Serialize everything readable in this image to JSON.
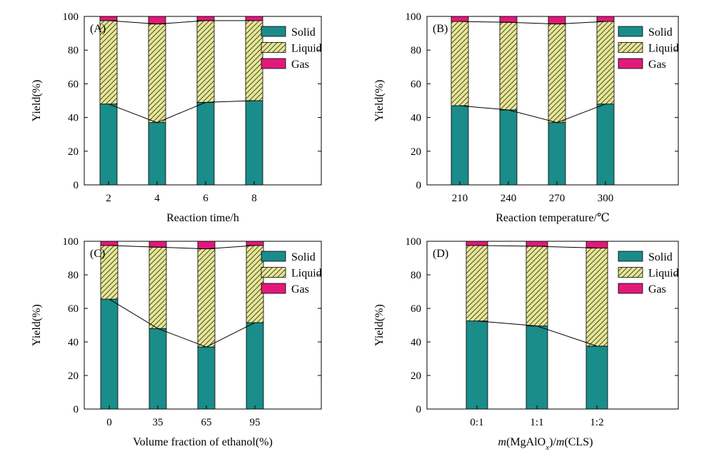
{
  "figure": {
    "colors": {
      "solid": "#1a8c89",
      "liquid": "#e6e69a",
      "liquid_hatch": "#3a3a10",
      "gas": "#e0197a",
      "axis": "#000000",
      "line": "#000000"
    }
  },
  "chart_data": [
    {
      "type": "bar",
      "stacked": true,
      "panel_label": "(A)",
      "title": "",
      "xlabel": "Reaction time/h",
      "ylabel": "Yield(%)",
      "ylim": [
        0,
        100
      ],
      "yticks": [
        "0",
        "20",
        "40",
        "60",
        "80",
        "100"
      ],
      "categories": [
        "2",
        "4",
        "6",
        "8"
      ],
      "legend": [
        "Solid",
        "Liquid",
        "Gas"
      ],
      "legend_position": "top-right",
      "series": [
        {
          "name": "Solid",
          "values": [
            48,
            37,
            49,
            50
          ]
        },
        {
          "name": "Liquid",
          "values": [
            49.5,
            58.5,
            48.5,
            47.5
          ]
        },
        {
          "name": "Gas",
          "values": [
            2.5,
            4.5,
            2.5,
            2.5
          ]
        }
      ]
    },
    {
      "type": "bar",
      "stacked": true,
      "panel_label": "(B)",
      "title": "",
      "xlabel": "Reaction temperature/℃",
      "ylabel": "Yield(%)",
      "ylim": [
        0,
        100
      ],
      "yticks": [
        "0",
        "20",
        "40",
        "60",
        "80",
        "100"
      ],
      "categories": [
        "210",
        "240",
        "270",
        "300"
      ],
      "legend": [
        "Solid",
        "Liquid",
        "Gas"
      ],
      "legend_position": "top-right",
      "series": [
        {
          "name": "Solid",
          "values": [
            47,
            44.5,
            37,
            48
          ]
        },
        {
          "name": "Liquid",
          "values": [
            50,
            52,
            58.5,
            49
          ]
        },
        {
          "name": "Gas",
          "values": [
            3,
            3.5,
            4.5,
            3
          ]
        }
      ]
    },
    {
      "type": "bar",
      "stacked": true,
      "panel_label": "(C)",
      "title": "",
      "xlabel": "Volume fraction of ethanol(%)",
      "ylabel": "Yield(%)",
      "ylim": [
        0,
        100
      ],
      "yticks": [
        "0",
        "20",
        "40",
        "60",
        "80",
        "100"
      ],
      "categories": [
        "0",
        "35",
        "65",
        "95"
      ],
      "legend": [
        "Solid",
        "Liquid",
        "Gas"
      ],
      "legend_position": "top-right",
      "series": [
        {
          "name": "Solid",
          "values": [
            65.5,
            48,
            37,
            51.5
          ]
        },
        {
          "name": "Liquid",
          "values": [
            32,
            48.5,
            58.5,
            46
          ]
        },
        {
          "name": "Gas",
          "values": [
            2.5,
            3.5,
            4.5,
            2.5
          ]
        }
      ]
    },
    {
      "type": "bar",
      "stacked": true,
      "panel_label": "(D)",
      "title": "",
      "xlabel": "m(MgAlOx)/m(CLS)",
      "xlabel_parts": {
        "m1": "m",
        "p1": "(MgAlO",
        "sub": "x",
        "p2": ")/",
        "m2": "m",
        "p3": "(CLS)"
      },
      "ylabel": "Yield(%)",
      "ylim": [
        0,
        100
      ],
      "yticks": [
        "0",
        "20",
        "40",
        "60",
        "80",
        "100"
      ],
      "categories": [
        "0:1",
        "1:1",
        "1:2"
      ],
      "legend": [
        "Solid",
        "Liquid",
        "Gas"
      ],
      "legend_position": "top-right",
      "series": [
        {
          "name": "Solid",
          "values": [
            52.5,
            49.5,
            37.5
          ]
        },
        {
          "name": "Liquid",
          "values": [
            45,
            47.5,
            58.5
          ]
        },
        {
          "name": "Gas",
          "values": [
            2.5,
            3,
            4
          ]
        }
      ]
    }
  ]
}
